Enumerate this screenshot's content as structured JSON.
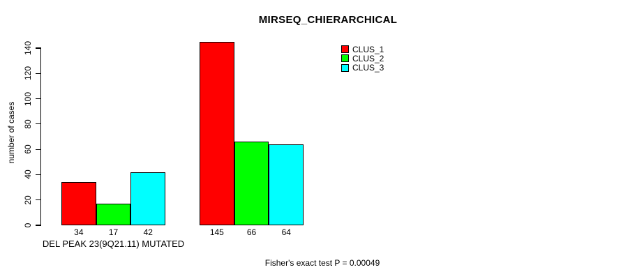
{
  "chart_data": {
    "type": "bar",
    "title": "MIRSEQ_CHIERARCHICAL",
    "ylabel": "number of cases",
    "xlabel": "",
    "categories": [
      "DEL PEAK 23(9Q21.11) MUTATED",
      ""
    ],
    "series": [
      {
        "name": "CLUS_1",
        "color": "#FF0000",
        "values": [
          34,
          145
        ]
      },
      {
        "name": "CLUS_2",
        "color": "#00FF00",
        "values": [
          17,
          66
        ]
      },
      {
        "name": "CLUS_3",
        "color": "#00FFFF",
        "values": [
          42,
          64
        ]
      }
    ],
    "yticks": [
      0,
      20,
      40,
      60,
      80,
      100,
      120,
      140
    ],
    "ylim": [
      0,
      140
    ],
    "grid": false,
    "legend_position": "top-right",
    "annotation": "Fisher's exact test P = 0.00049"
  }
}
